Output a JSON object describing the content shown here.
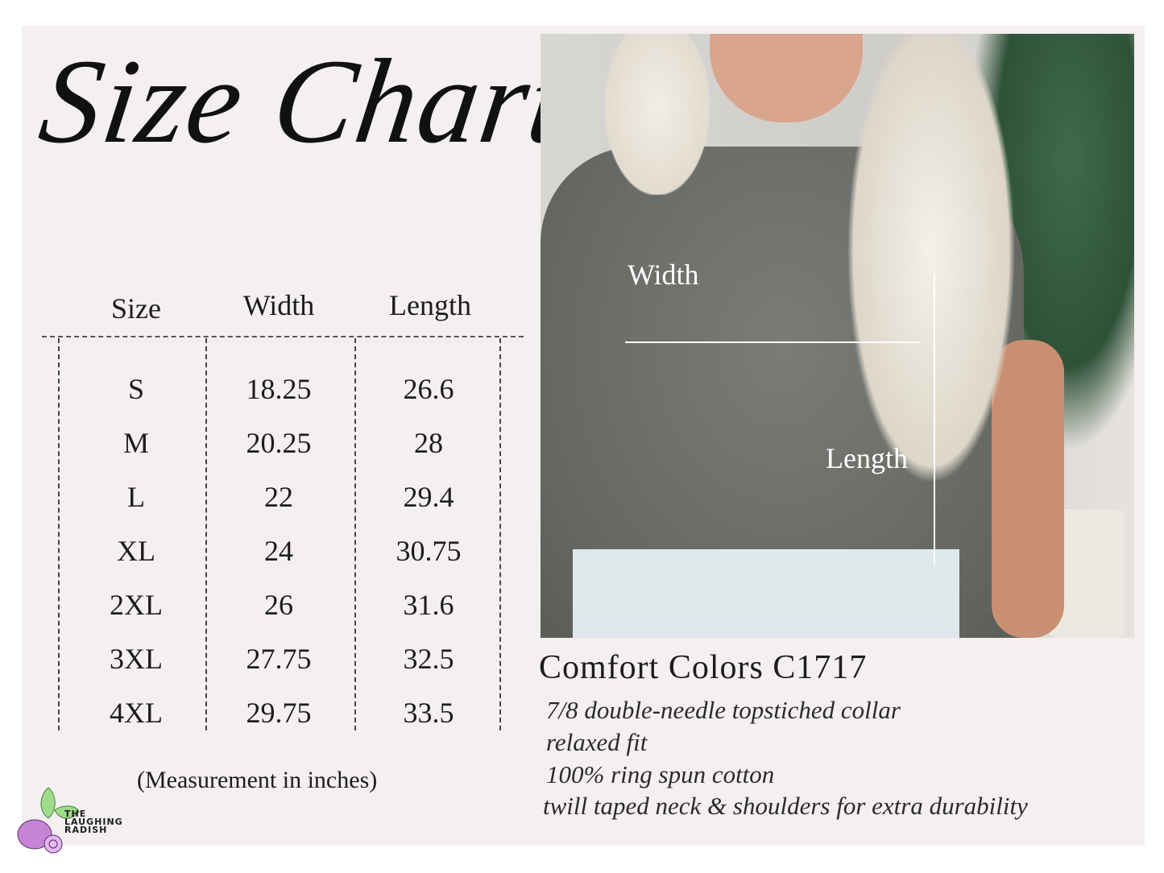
{
  "title": "Size Chart",
  "table": {
    "headers": [
      "Size",
      "Width",
      "Length"
    ],
    "rows": [
      [
        "S",
        "18.25",
        "26.6"
      ],
      [
        "M",
        "20.25",
        "28"
      ],
      [
        "L",
        "22",
        "29.4"
      ],
      [
        "XL",
        "24",
        "30.75"
      ],
      [
        "2XL",
        "26",
        "31.6"
      ],
      [
        "3XL",
        "27.75",
        "32.5"
      ],
      [
        "4XL",
        "29.75",
        "33.5"
      ]
    ]
  },
  "note": "(Measurement in inches)",
  "photo": {
    "width_label": "Width",
    "length_label": "Length"
  },
  "product": {
    "name": "Comfort Colors C1717",
    "features": [
      "7/8 double-needle topstiched collar",
      "relaxed fit",
      "100% ring spun cotton",
      "twill taped neck & shoulders for extra durability"
    ]
  },
  "logo": {
    "lines": [
      "THE",
      "LAUGHING",
      "RADISH"
    ]
  },
  "colors": {
    "background": "#f4f0ef",
    "text": "#1c1c1c",
    "shirt": "#6a6c68",
    "radish": "#c784d6",
    "leaf": "#9fdc8a"
  }
}
